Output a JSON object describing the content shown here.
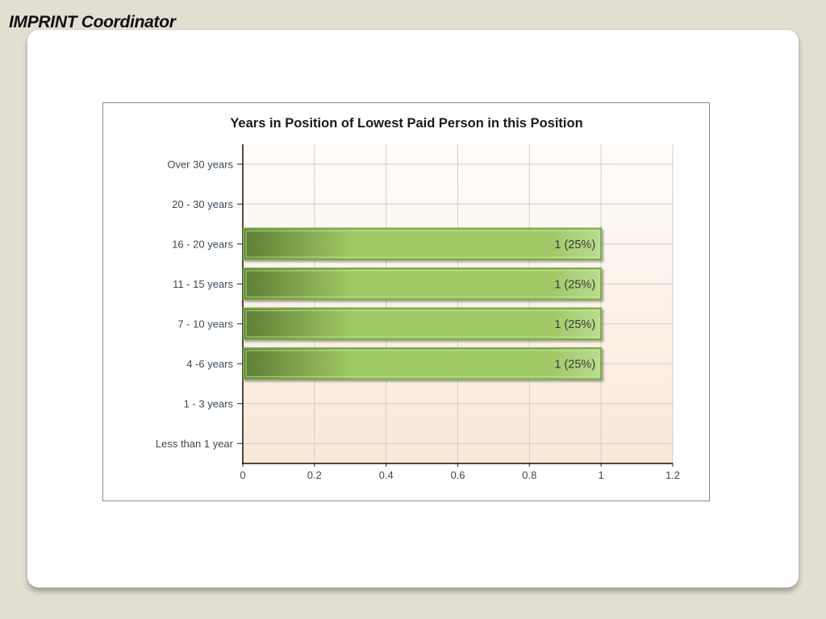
{
  "slide": {
    "title": "IMPRINT Coordinator"
  },
  "colors": {
    "background": "#e3ded2",
    "plot_top": "#fffdfb",
    "plot_bottom": "#fae7d7",
    "bar_dark": "#5e7e34",
    "bar_mid": "#9ec865",
    "bar_light": "#b8db8f",
    "bar_border": "#7aa94a",
    "gridline": "#cfcfcf"
  },
  "chart_data": {
    "type": "bar",
    "orientation": "horizontal",
    "title": "Years in Position of Lowest Paid Person in this Position",
    "xlabel": "",
    "ylabel": "",
    "categories": [
      "Over 30 years",
      "20 - 30 years",
      "16 - 20 years",
      "11 - 15 years",
      "7 - 10 years",
      "4 -6 years",
      "1 - 3 years",
      "Less than 1 year"
    ],
    "values": [
      0,
      0,
      1,
      1,
      1,
      1,
      0,
      0
    ],
    "data_labels": [
      "",
      "",
      "1 (25%)",
      "1 (25%)",
      "1 (25%)",
      "1 (25%)",
      "",
      ""
    ],
    "xlim": [
      0,
      1.2
    ],
    "x_ticks": [
      "0",
      "0.2",
      "0.4",
      "0.6",
      "0.8",
      "1",
      "1.2"
    ],
    "grid": true,
    "legend": "none"
  }
}
